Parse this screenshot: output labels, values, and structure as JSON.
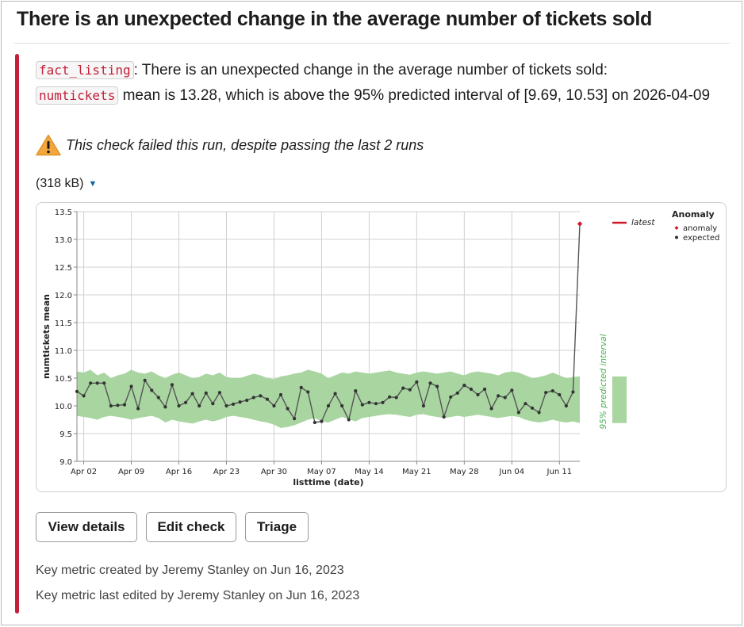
{
  "header": {
    "title": "There is an unexpected change in the average number of tickets sold"
  },
  "message": {
    "table_code": "fact_listing",
    "text1": ": There is an unexpected change in the average number of tickets sold:",
    "column_code": "numtickets",
    "text2": " mean is 13.28, which is above the 95% predicted interval of [9.69, 10.53] on 2026-04-09"
  },
  "status": {
    "icon": "warning-icon",
    "text": "This check failed this run, despite passing the last 2 runs"
  },
  "attachment": {
    "size_label": "(318 kB)"
  },
  "chart_data": {
    "type": "line",
    "ylabel": "numtickets mean",
    "xlabel": "listtime (date)",
    "ylim": [
      9.0,
      13.5
    ],
    "y_ticks": [
      "13.5",
      "13.0",
      "12.5",
      "12.0",
      "11.5",
      "11.0",
      "10.5",
      "10.0",
      "9.5",
      "9.0"
    ],
    "y_tick_values": [
      13.5,
      13.0,
      12.5,
      12.0,
      11.5,
      11.0,
      10.5,
      10.0,
      9.5,
      9.0
    ],
    "x_ticks": [
      "Apr 02",
      "Apr 09",
      "Apr 16",
      "Apr 23",
      "Apr 30",
      "May 07",
      "May 14",
      "May 21",
      "May 28",
      "Jun 04",
      "Jun 11"
    ],
    "x_tick_days": [
      1,
      8,
      15,
      22,
      29,
      36,
      43,
      50,
      57,
      64,
      71
    ],
    "series_values": [
      10.26,
      10.18,
      10.41,
      10.41,
      10.41,
      10.0,
      10.01,
      10.02,
      10.35,
      9.95,
      10.46,
      10.28,
      10.15,
      9.98,
      10.38,
      10.0,
      10.06,
      10.22,
      10.0,
      10.23,
      10.04,
      10.24,
      10.0,
      10.03,
      10.07,
      10.1,
      10.15,
      10.18,
      10.12,
      10.0,
      10.2,
      9.95,
      9.77,
      10.33,
      10.25,
      9.7,
      9.72,
      10.0,
      10.22,
      10.0,
      9.75,
      10.27,
      10.02,
      10.06,
      10.04,
      10.06,
      10.16,
      10.15,
      10.32,
      10.29,
      10.43,
      10.0,
      10.41,
      10.35,
      9.8,
      10.16,
      10.23,
      10.37,
      10.3,
      10.2,
      10.3,
      9.95,
      10.18,
      10.15,
      10.28,
      9.88,
      10.04,
      9.96,
      9.88,
      10.24,
      10.27,
      10.2,
      10.0,
      10.25,
      13.28
    ],
    "interval_upper": [
      10.62,
      10.6,
      10.65,
      10.55,
      10.6,
      10.5,
      10.55,
      10.58,
      10.65,
      10.6,
      10.58,
      10.62,
      10.55,
      10.5,
      10.56,
      10.6,
      10.55,
      10.5,
      10.52,
      10.58,
      10.55,
      10.6,
      10.52,
      10.5,
      10.5,
      10.54,
      10.58,
      10.55,
      10.5,
      10.48,
      10.53,
      10.55,
      10.58,
      10.6,
      10.65,
      10.62,
      10.58,
      10.5,
      10.55,
      10.6,
      10.58,
      10.62,
      10.6,
      10.58,
      10.6,
      10.62,
      10.64,
      10.6,
      10.58,
      10.56,
      10.6,
      10.62,
      10.6,
      10.58,
      10.6,
      10.62,
      10.58,
      10.55,
      10.6,
      10.62,
      10.6,
      10.58,
      10.55,
      10.6,
      10.62,
      10.6,
      10.55,
      10.5,
      10.52,
      10.55,
      10.6,
      10.55,
      10.5,
      10.52,
      10.53
    ],
    "interval_lower": [
      9.82,
      9.8,
      9.78,
      9.75,
      9.8,
      9.82,
      9.8,
      9.78,
      9.75,
      9.78,
      9.8,
      9.82,
      9.78,
      9.7,
      9.75,
      9.72,
      9.7,
      9.68,
      9.72,
      9.75,
      9.72,
      9.75,
      9.8,
      9.82,
      9.8,
      9.78,
      9.75,
      9.72,
      9.7,
      9.66,
      9.6,
      9.62,
      9.65,
      9.7,
      9.75,
      9.78,
      9.72,
      9.7,
      9.75,
      9.8,
      9.76,
      9.72,
      9.78,
      9.8,
      9.82,
      9.84,
      9.85,
      9.84,
      9.82,
      9.8,
      9.84,
      9.85,
      9.82,
      9.8,
      9.78,
      9.8,
      9.82,
      9.8,
      9.82,
      9.84,
      9.82,
      9.8,
      9.78,
      9.8,
      9.82,
      9.8,
      9.75,
      9.72,
      9.7,
      9.72,
      9.75,
      9.72,
      9.7,
      9.72,
      9.69
    ],
    "interval_latest": [
      9.69,
      10.53
    ],
    "interval_label": "95% predicted interval",
    "legend": {
      "latest_label": "latest",
      "title": "Anomaly",
      "anomaly_label": "anomaly",
      "expected_label": "expected"
    },
    "colors": {
      "band": "#a8d5a0",
      "line": "#555555",
      "point": "#333333",
      "anomaly": "#d11a2a",
      "interval_text": "#4caf50",
      "grid": "#d0d0d0"
    },
    "grid": true,
    "legend_position": "top-right"
  },
  "actions": {
    "view_details": "View details",
    "edit_check": "Edit check",
    "triage": "Triage"
  },
  "footer": {
    "created": "Key metric created by Jeremy Stanley on Jun 16, 2023",
    "edited": "Key metric last edited by Jeremy Stanley on Jun 16, 2023"
  }
}
